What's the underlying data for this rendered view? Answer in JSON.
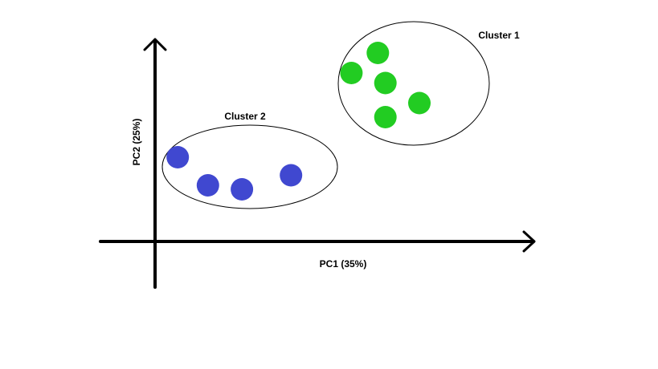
{
  "chart_data": {
    "type": "scatter",
    "title": "",
    "xlabel": "PC1 (35%)",
    "ylabel": "PC2 (25%)",
    "xlim": [
      0,
      10
    ],
    "ylim": [
      0,
      10
    ],
    "grid": false,
    "series": [
      {
        "name": "Cluster 2",
        "color": "#4048d0",
        "points": [
          {
            "x": 0.6,
            "y": 4.2
          },
          {
            "x": 1.4,
            "y": 2.8
          },
          {
            "x": 2.3,
            "y": 2.6
          },
          {
            "x": 3.6,
            "y": 3.3
          }
        ]
      },
      {
        "name": "Cluster 1",
        "color": "#22cc22",
        "points": [
          {
            "x": 5.2,
            "y": 8.4
          },
          {
            "x": 5.9,
            "y": 9.4
          },
          {
            "x": 6.1,
            "y": 7.9
          },
          {
            "x": 6.1,
            "y": 6.2
          },
          {
            "x": 7.0,
            "y": 6.9
          }
        ]
      }
    ]
  }
}
